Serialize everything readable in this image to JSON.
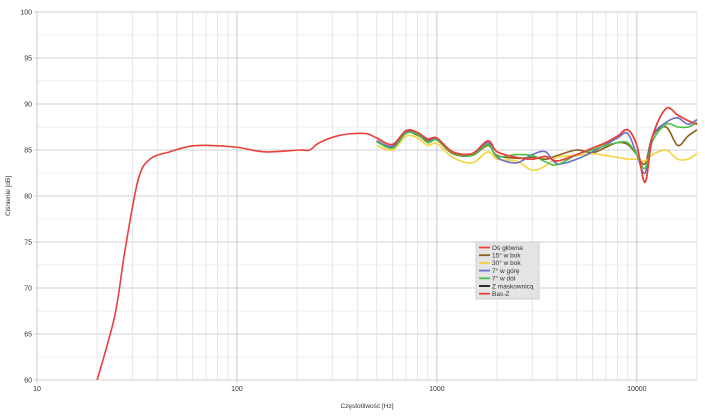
{
  "chart_data": {
    "type": "line",
    "title": "",
    "xlabel": "Częstotliwość [Hz]",
    "ylabel": "Ciśnienie [dB]",
    "xscale": "log",
    "xlim": [
      10,
      20000
    ],
    "ylim": [
      60,
      100
    ],
    "xticks": [
      "10",
      "100",
      "1000",
      "10000"
    ],
    "yticks": [
      "60",
      "65",
      "70",
      "75",
      "80",
      "85",
      "90",
      "95",
      "100"
    ],
    "grid": true,
    "legend_position": "center-right",
    "series": [
      {
        "name": "Oś główna",
        "color": "#e8413c",
        "x": [
          500,
          600,
          700,
          800,
          900,
          1000,
          1200,
          1500,
          1800,
          2000,
          2500,
          3000,
          3500,
          4000,
          5000,
          6000,
          7000,
          8000,
          9000,
          10000,
          11000,
          12000,
          14000,
          16000,
          18000,
          20000
        ],
        "y": [
          86.3,
          85.6,
          87.1,
          86.9,
          86.2,
          86.3,
          84.8,
          84.6,
          86.0,
          84.8,
          84.2,
          84.0,
          84.3,
          83.8,
          84.5,
          85.2,
          85.8,
          86.5,
          87.2,
          85.5,
          81.5,
          86.5,
          89.5,
          88.8,
          88.2,
          87.8
        ]
      },
      {
        "name": "15° w bok",
        "color": "#8b5e1a",
        "x": [
          500,
          600,
          700,
          800,
          900,
          1000,
          1200,
          1500,
          1800,
          2000,
          2500,
          3000,
          3500,
          4000,
          5000,
          6000,
          7000,
          8000,
          9000,
          10000,
          11000,
          12000,
          14000,
          16000,
          18000,
          20000
        ],
        "y": [
          86.0,
          85.3,
          86.9,
          86.6,
          86.0,
          86.1,
          84.6,
          84.4,
          85.5,
          84.4,
          84.1,
          84.2,
          84.0,
          84.4,
          85.0,
          84.7,
          85.3,
          85.8,
          85.6,
          84.5,
          83.5,
          86.5,
          87.5,
          85.5,
          86.5,
          87.2
        ]
      },
      {
        "name": "30° w bok",
        "color": "#f5d33a",
        "x": [
          500,
          600,
          700,
          800,
          900,
          1000,
          1200,
          1500,
          1800,
          2000,
          2500,
          3000,
          3500,
          4000,
          5000,
          6000,
          7000,
          8000,
          9000,
          10000,
          11000,
          12000,
          14000,
          16000,
          18000,
          20000
        ],
        "y": [
          85.5,
          85.0,
          86.5,
          86.3,
          85.5,
          85.7,
          84.2,
          83.6,
          84.8,
          84.0,
          83.8,
          82.8,
          83.3,
          84.2,
          84.4,
          84.6,
          84.4,
          84.2,
          84.0,
          84.0,
          83.8,
          84.5,
          85.0,
          84.0,
          84.0,
          84.6
        ]
      },
      {
        "name": "7° w górę",
        "color": "#6a6fc9",
        "x": [
          500,
          600,
          700,
          800,
          900,
          1000,
          1200,
          1500,
          1800,
          2000,
          2500,
          3000,
          3500,
          4000,
          5000,
          6000,
          7000,
          8000,
          9000,
          10000,
          11000,
          12000,
          14000,
          16000,
          18000,
          20000
        ],
        "y": [
          86.0,
          85.4,
          87.0,
          86.8,
          86.1,
          86.2,
          84.7,
          84.5,
          85.8,
          84.2,
          83.6,
          84.5,
          84.8,
          83.5,
          84.0,
          84.8,
          85.6,
          86.3,
          86.8,
          84.5,
          82.5,
          86.5,
          88.0,
          88.5,
          87.8,
          88.3
        ]
      },
      {
        "name": "7° w dół",
        "color": "#4bbf45",
        "x": [
          500,
          600,
          700,
          800,
          900,
          1000,
          1200,
          1500,
          1800,
          2000,
          2500,
          3000,
          3500,
          4000,
          5000,
          6000,
          7000,
          8000,
          9000,
          10000,
          11000,
          12000,
          14000,
          16000,
          18000,
          20000
        ],
        "y": [
          85.9,
          85.2,
          86.8,
          86.7,
          85.8,
          86.1,
          84.7,
          84.4,
          85.6,
          84.3,
          84.5,
          84.4,
          83.7,
          83.4,
          84.5,
          85.0,
          85.5,
          85.8,
          85.8,
          84.5,
          83.0,
          86.0,
          87.8,
          87.5,
          87.5,
          88.0
        ]
      },
      {
        "name": "Z maskownicą",
        "color": "#1a1a1a",
        "x": [],
        "y": []
      },
      {
        "name": "Bas-Z",
        "color": "#e8413c",
        "x": [
          20,
          24.5,
          27.5,
          32,
          36.7,
          46,
          58,
          73,
          100,
          138,
          206,
          231,
          259,
          327,
          436,
          500,
          600,
          700,
          800,
          900,
          1000,
          1200,
          1500,
          1800,
          2000,
          2500,
          3000,
          3500,
          4000,
          5000,
          6000,
          7000,
          8000,
          9000,
          10000,
          11000,
          12000,
          14000,
          16000,
          18000,
          20000
        ],
        "y": [
          60,
          67,
          74,
          81.7,
          84,
          84.8,
          85.4,
          85.5,
          85.3,
          84.8,
          85,
          85,
          85.8,
          86.6,
          86.8,
          86.3,
          85.6,
          87.1,
          86.9,
          86.2,
          86.3,
          84.8,
          84.6,
          86.0,
          84.8,
          84.2,
          84.0,
          84.3,
          83.8,
          84.5,
          85.2,
          85.8,
          86.5,
          87.2,
          85.5,
          81.5,
          86.5,
          89.5,
          88.8,
          88.2,
          87.8
        ]
      }
    ]
  }
}
